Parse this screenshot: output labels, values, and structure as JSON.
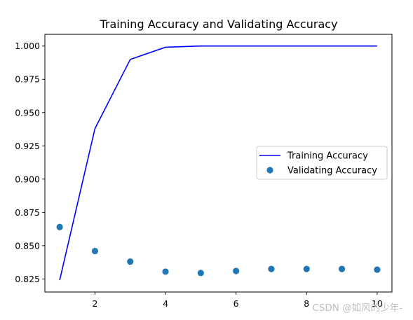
{
  "chart_data": {
    "type": "line",
    "title": "Training Accuracy and Validating Accuracy",
    "xlabel": "",
    "ylabel": "",
    "x": [
      1,
      2,
      3,
      4,
      5,
      6,
      7,
      8,
      9,
      10
    ],
    "xlim": [
      0.58,
      10.42
    ],
    "ylim": [
      0.8152,
      1.0088
    ],
    "xticks": [
      2,
      4,
      6,
      8,
      10
    ],
    "yticks": [
      0.825,
      0.85,
      0.875,
      0.9,
      0.925,
      0.95,
      0.975,
      1.0
    ],
    "xtick_labels": [
      "2",
      "4",
      "6",
      "8",
      "10"
    ],
    "ytick_labels": [
      "0.825",
      "0.850",
      "0.875",
      "0.900",
      "0.925",
      "0.950",
      "0.975",
      "1.000"
    ],
    "grid": false,
    "legend_position": "center-right",
    "series": [
      {
        "name": "Training Accuracy",
        "style": "line",
        "color": "#0000ff",
        "values": [
          0.8241,
          0.938,
          0.9899,
          0.9991,
          1.0,
          1.0,
          1.0,
          1.0,
          1.0,
          1.0
        ]
      },
      {
        "name": "Validating Accuracy",
        "style": "scatter",
        "color": "#1f77b4",
        "values": [
          0.864,
          0.846,
          0.838,
          0.8305,
          0.8295,
          0.831,
          0.8325,
          0.8325,
          0.8325,
          0.832
        ]
      }
    ]
  },
  "watermark": "CSDN @如风的少年-"
}
